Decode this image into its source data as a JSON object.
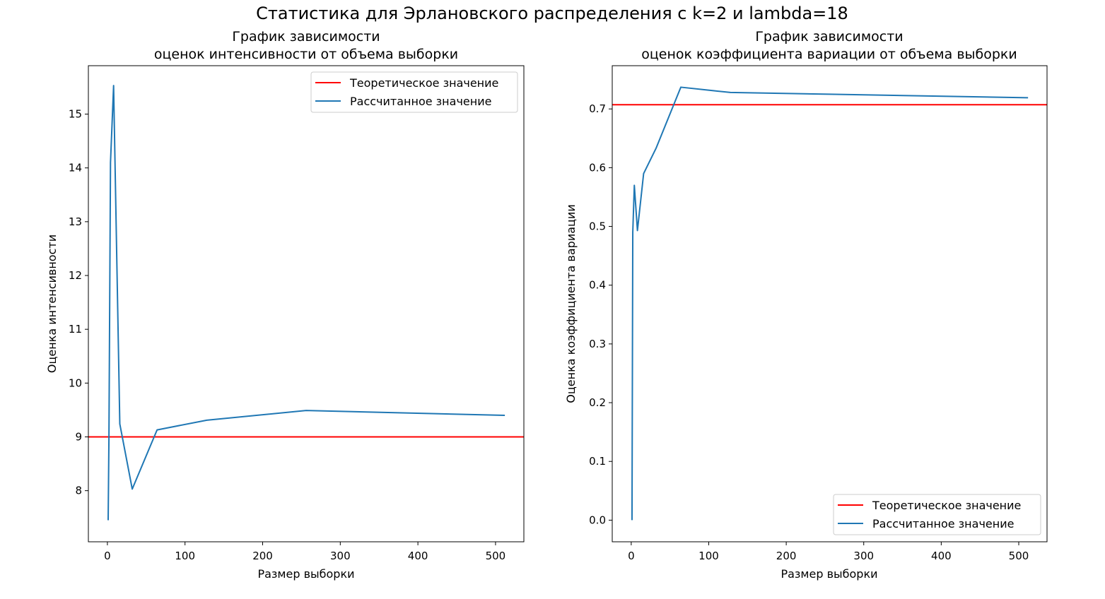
{
  "figure": {
    "suptitle": "Статистика для Эрлановского распределения с k=2 и lambda=18",
    "colors": {
      "theoretical": "#ff0000",
      "computed": "#1f77b4",
      "axes": "#000000"
    }
  },
  "chart_data": [
    {
      "type": "line",
      "title_line1": "График зависимости",
      "title_line2": "оценок интенсивности от объема выборки",
      "xlabel": "Размер выборки",
      "ylabel": "Оценка интенсивности",
      "xlim": [
        -24.5,
        536.5
      ],
      "ylim": [
        7.05,
        15.9
      ],
      "xticks": [
        0,
        100,
        200,
        300,
        400,
        500
      ],
      "yticks": [
        8,
        9,
        10,
        11,
        12,
        13,
        14,
        15
      ],
      "legend_position": "upper right",
      "series": [
        {
          "name": "Теоретическое значение",
          "kind": "hline",
          "y": 9,
          "color": "#ff0000"
        },
        {
          "name": "Рассчитанное значение",
          "kind": "line",
          "color": "#1f77b4",
          "x": [
            1,
            2,
            4,
            8,
            16,
            32,
            64,
            128,
            256,
            512
          ],
          "y": [
            7.45,
            9.0,
            14.1,
            15.53,
            9.24,
            8.03,
            9.13,
            9.31,
            9.49,
            9.4
          ]
        }
      ]
    },
    {
      "type": "line",
      "title_line1": "График зависимости",
      "title_line2": "оценок коэффициента вариации от объема выборки",
      "xlabel": "Размер выборки",
      "ylabel": "Оценка коэффициента вариации",
      "xlim": [
        -24.5,
        536.5
      ],
      "ylim": [
        -0.0368,
        0.7736
      ],
      "xticks": [
        0,
        100,
        200,
        300,
        400,
        500
      ],
      "yticks": [
        0.0,
        0.1,
        0.2,
        0.3,
        0.4,
        0.5,
        0.6,
        0.7
      ],
      "ytick_labels": [
        "0.0",
        "0.1",
        "0.2",
        "0.3",
        "0.4",
        "0.5",
        "0.6",
        "0.7"
      ],
      "legend_position": "lower right",
      "series": [
        {
          "name": "Теоретическое значение",
          "kind": "hline",
          "y": 0.7071,
          "color": "#ff0000"
        },
        {
          "name": "Рассчитанное значение",
          "kind": "line",
          "color": "#1f77b4",
          "x": [
            1,
            2,
            4,
            8,
            16,
            32,
            64,
            128,
            256,
            512
          ],
          "y": [
            0.0,
            0.49,
            0.57,
            0.493,
            0.59,
            0.633,
            0.737,
            0.728,
            0.725,
            0.719
          ]
        }
      ]
    }
  ]
}
